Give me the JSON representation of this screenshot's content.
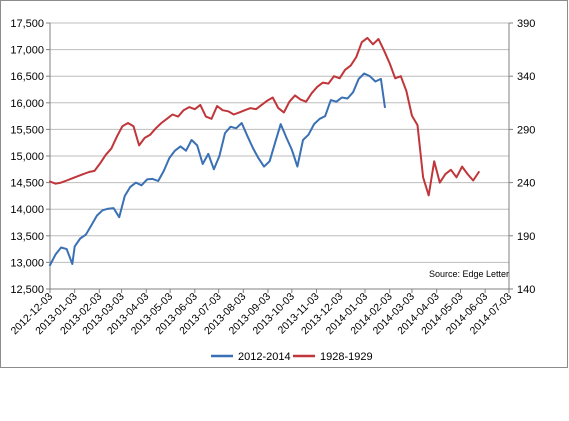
{
  "chart_data": {
    "type": "line",
    "title": "",
    "xlabel": "",
    "ylabel": "",
    "x_tick_labels": [
      "2012-12-03",
      "2013-01-03",
      "2013-02-03",
      "2013-03-03",
      "2013-04-03",
      "2013-05-03",
      "2013-06-03",
      "2013-07-03",
      "2013-08-03",
      "2013-09-03",
      "2013-10-03",
      "2013-11-03",
      "2013-12-03",
      "2014-01-03",
      "2014-02-03",
      "2014-03-03",
      "2014-04-03",
      "2014-05-03",
      "2014-06-03",
      "2014-07-03"
    ],
    "xlim": [
      "2012-12-03",
      "2014-07-03"
    ],
    "y_left": {
      "ylim": [
        12500,
        17500
      ],
      "ticks": [
        "12,500",
        "13,000",
        "13,500",
        "14,000",
        "14,500",
        "15,000",
        "15,500",
        "16,000",
        "16,500",
        "17,000",
        "17,500"
      ]
    },
    "y_right": {
      "ylim": [
        140,
        390
      ],
      "ticks": [
        "140",
        "190",
        "240",
        "290",
        "340",
        "390"
      ]
    },
    "grid": "horizontal",
    "legend_position": "bottom",
    "annotation": "Source: Edge Letter",
    "series": [
      {
        "name": "2012-2014",
        "color": "#3a70b4",
        "axis": "left",
        "x": [
          "2012-12-03",
          "2012-12-10",
          "2012-12-17",
          "2012-12-24",
          "2012-12-31",
          "2013-01-03",
          "2013-01-10",
          "2013-01-17",
          "2013-01-24",
          "2013-01-31",
          "2013-02-07",
          "2013-02-14",
          "2013-02-21",
          "2013-02-28",
          "2013-03-07",
          "2013-03-14",
          "2013-03-21",
          "2013-03-28",
          "2013-04-04",
          "2013-04-11",
          "2013-04-18",
          "2013-04-25",
          "2013-05-02",
          "2013-05-09",
          "2013-05-16",
          "2013-05-23",
          "2013-05-30",
          "2013-06-06",
          "2013-06-13",
          "2013-06-20",
          "2013-06-27",
          "2013-07-04",
          "2013-07-11",
          "2013-07-18",
          "2013-07-25",
          "2013-08-01",
          "2013-08-08",
          "2013-08-15",
          "2013-08-22",
          "2013-08-29",
          "2013-09-05",
          "2013-09-12",
          "2013-09-19",
          "2013-09-26",
          "2013-10-03",
          "2013-10-10",
          "2013-10-17",
          "2013-10-24",
          "2013-10-31",
          "2013-11-07",
          "2013-11-14",
          "2013-11-21",
          "2013-11-28",
          "2013-12-05",
          "2013-12-12",
          "2013-12-19",
          "2013-12-26",
          "2014-01-02",
          "2014-01-09",
          "2014-01-16",
          "2014-01-23",
          "2014-01-28"
        ],
        "values": [
          12950,
          13150,
          13280,
          13250,
          12970,
          13300,
          13450,
          13520,
          13700,
          13880,
          13980,
          14010,
          14020,
          13850,
          14250,
          14420,
          14500,
          14450,
          14560,
          14570,
          14530,
          14720,
          14960,
          15100,
          15180,
          15100,
          15300,
          15200,
          14850,
          15040,
          14750,
          15000,
          15430,
          15550,
          15520,
          15620,
          15380,
          15150,
          14960,
          14800,
          14900,
          15250,
          15600,
          15350,
          15120,
          14800,
          15300,
          15400,
          15600,
          15700,
          15750,
          16050,
          16020,
          16100,
          16080,
          16200,
          16450,
          16550,
          16500,
          16400,
          16450,
          15920
        ]
      },
      {
        "name": "1928-1929",
        "color": "#c0363a",
        "axis": "right",
        "x": [
          "2012-12-03",
          "2012-12-10",
          "2012-12-17",
          "2012-12-24",
          "2012-12-31",
          "2013-01-07",
          "2013-01-14",
          "2013-01-21",
          "2013-01-28",
          "2013-02-04",
          "2013-02-11",
          "2013-02-18",
          "2013-02-25",
          "2013-03-04",
          "2013-03-11",
          "2013-03-18",
          "2013-03-25",
          "2013-04-01",
          "2013-04-08",
          "2013-04-15",
          "2013-04-22",
          "2013-04-29",
          "2013-05-06",
          "2013-05-13",
          "2013-05-20",
          "2013-05-27",
          "2013-06-03",
          "2013-06-10",
          "2013-06-17",
          "2013-06-24",
          "2013-07-01",
          "2013-07-08",
          "2013-07-15",
          "2013-07-22",
          "2013-07-29",
          "2013-08-05",
          "2013-08-12",
          "2013-08-19",
          "2013-08-26",
          "2013-09-02",
          "2013-09-09",
          "2013-09-16",
          "2013-09-23",
          "2013-09-30",
          "2013-10-07",
          "2013-10-14",
          "2013-10-21",
          "2013-10-28",
          "2013-11-04",
          "2013-11-11",
          "2013-11-18",
          "2013-11-25",
          "2013-12-02",
          "2013-12-09",
          "2013-12-16",
          "2013-12-23",
          "2013-12-30",
          "2014-01-06",
          "2014-01-13",
          "2014-01-20",
          "2014-01-27",
          "2014-02-03",
          "2014-02-10",
          "2014-02-17",
          "2014-02-24",
          "2014-03-03",
          "2014-03-10",
          "2014-03-17",
          "2014-03-24",
          "2014-03-31",
          "2014-04-07",
          "2014-04-14",
          "2014-04-21",
          "2014-04-28",
          "2014-05-05",
          "2014-05-12",
          "2014-05-19",
          "2014-05-26"
        ],
        "values": [
          241,
          239,
          240,
          242,
          244,
          246,
          248,
          250,
          251,
          258,
          266,
          272,
          283,
          293,
          296,
          293,
          275,
          282,
          285,
          291,
          296,
          300,
          304,
          302,
          308,
          311,
          309,
          313,
          302,
          300,
          312,
          308,
          307,
          304,
          306,
          308,
          310,
          309,
          313,
          317,
          320,
          310,
          306,
          316,
          322,
          318,
          316,
          324,
          330,
          334,
          333,
          340,
          338,
          346,
          350,
          358,
          372,
          376,
          370,
          375,
          364,
          352,
          338,
          340,
          326,
          303,
          294,
          245,
          228,
          260,
          240,
          248,
          252,
          245,
          255,
          248,
          242,
          250
        ]
      }
    ]
  }
}
